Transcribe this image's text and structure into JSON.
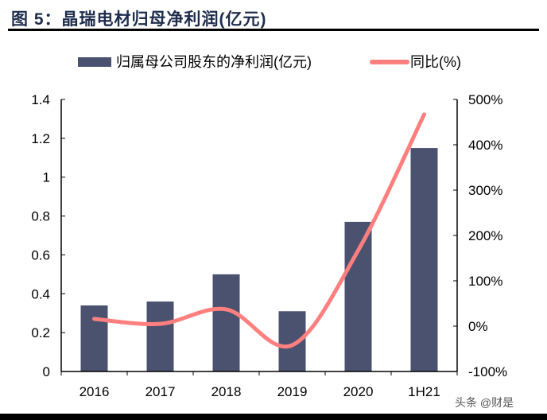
{
  "title": "图 5：晶瑞电材归母净利润(亿元)",
  "watermark": "头条 @财是",
  "colors": {
    "bar": "#4a5270",
    "line": "#ff7f7f",
    "title": "#1f2d4d"
  },
  "chart_data": {
    "type": "bar",
    "title": "晶瑞电材归母净利润(亿元)",
    "categories": [
      "2016",
      "2017",
      "2018",
      "2019",
      "2020",
      "1H21"
    ],
    "series": [
      {
        "name": "归属母公司股东的净利润(亿元)",
        "type": "bar",
        "axis": "left",
        "values": [
          0.34,
          0.36,
          0.5,
          0.31,
          0.77,
          1.15
        ]
      },
      {
        "name": "同比(%)",
        "type": "line",
        "axis": "right",
        "values": [
          16,
          5,
          37,
          -42,
          167,
          467
        ]
      }
    ],
    "y_left": {
      "min": 0,
      "max": 1.4,
      "ticks": [
        "0",
        "0.2",
        "0.4",
        "0.6",
        "0.8",
        "1",
        "1.2",
        "1.4"
      ]
    },
    "y_right": {
      "min": -100,
      "max": 500,
      "ticks": [
        "-100%",
        "0%",
        "100%",
        "200%",
        "300%",
        "400%",
        "500%"
      ]
    },
    "legend": "top-center",
    "grid": false
  }
}
